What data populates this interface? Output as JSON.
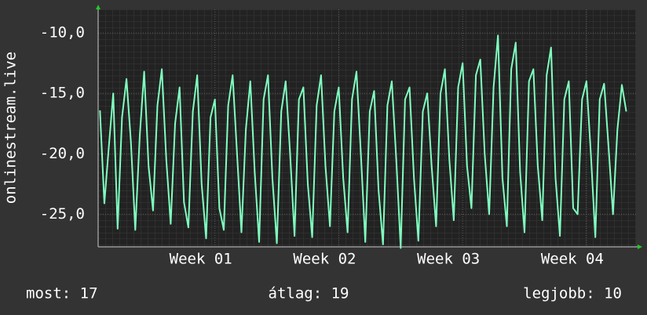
{
  "chart_data": {
    "type": "line",
    "y_label": "onlinestream.live",
    "color": "#80ffc0",
    "grid": true,
    "xlim": [
      0.4,
      30.8
    ],
    "ylim": [
      -27.7,
      -8.05
    ],
    "xticks": [
      {
        "value": 7,
        "label": "Week 01"
      },
      {
        "value": 14,
        "label": "Week 02"
      },
      {
        "value": 21,
        "label": "Week 03"
      },
      {
        "value": 28,
        "label": "Week 04"
      }
    ],
    "yticks": [
      {
        "value": -10,
        "label": "-10,0"
      },
      {
        "value": -15,
        "label": "-15,0"
      },
      {
        "value": -20,
        "label": "-20,0"
      },
      {
        "value": -25,
        "label": "-25,0"
      }
    ],
    "x": [
      0.5,
      0.75,
      1,
      1.25,
      1.5,
      1.75,
      2,
      2.25,
      2.5,
      2.75,
      3,
      3.25,
      3.5,
      3.75,
      4,
      4.25,
      4.5,
      4.75,
      5,
      5.25,
      5.5,
      5.75,
      6,
      6.25,
      6.5,
      6.75,
      7,
      7.25,
      7.5,
      7.75,
      8,
      8.25,
      8.5,
      8.75,
      9,
      9.25,
      9.5,
      9.75,
      10,
      10.25,
      10.5,
      10.75,
      11,
      11.25,
      11.5,
      11.75,
      12,
      12.25,
      12.5,
      12.75,
      13,
      13.25,
      13.5,
      13.75,
      14,
      14.25,
      14.5,
      14.75,
      15,
      15.25,
      15.5,
      15.75,
      16,
      16.25,
      16.5,
      16.75,
      17,
      17.25,
      17.5,
      17.75,
      18,
      18.25,
      18.5,
      18.75,
      19,
      19.25,
      19.5,
      19.75,
      20,
      20.25,
      20.5,
      20.75,
      21,
      21.25,
      21.5,
      21.75,
      22,
      22.25,
      22.5,
      22.75,
      23,
      23.25,
      23.5,
      23.75,
      24,
      24.25,
      24.5,
      24.75,
      25,
      25.25,
      25.5,
      25.75,
      26,
      26.25,
      26.5,
      26.75,
      27,
      27.25,
      27.5,
      27.75,
      28,
      28.25,
      28.5,
      28.75,
      29,
      29.25,
      29.5,
      29.75,
      30,
      30.25
    ],
    "values": [
      -16.4,
      -24.1,
      -19.5,
      -15.0,
      -26.2,
      -17.0,
      -13.8,
      -19.0,
      -26.3,
      -18.5,
      -13.2,
      -21.0,
      -24.7,
      -16.0,
      -13.0,
      -20.5,
      -25.8,
      -17.5,
      -14.5,
      -24.0,
      -26.1,
      -16.5,
      -13.5,
      -22.5,
      -27.0,
      -17.0,
      -15.5,
      -24.5,
      -26.3,
      -16.0,
      -13.5,
      -20.0,
      -26.5,
      -18.0,
      -14.0,
      -21.5,
      -27.3,
      -15.5,
      -13.5,
      -22.0,
      -27.4,
      -16.5,
      -14.0,
      -20.0,
      -26.8,
      -15.5,
      -14.5,
      -22.5,
      -26.9,
      -16.0,
      -13.5,
      -21.0,
      -26.0,
      -16.5,
      -14.5,
      -22.0,
      -26.5,
      -15.5,
      -13.2,
      -20.0,
      -27.3,
      -16.5,
      -14.8,
      -23.0,
      -27.5,
      -16.0,
      -14.0,
      -20.5,
      -27.8,
      -15.5,
      -14.5,
      -22.0,
      -27.2,
      -16.5,
      -15.0,
      -21.0,
      -26.0,
      -15.0,
      -13.0,
      -20.5,
      -25.5,
      -14.5,
      -12.5,
      -21.0,
      -24.5,
      -13.5,
      -12.2,
      -20.0,
      -25.0,
      -14.5,
      -10.2,
      -22.0,
      -26.0,
      -13.0,
      -10.8,
      -21.5,
      -26.5,
      -14.0,
      -13.0,
      -21.0,
      -25.5,
      -13.5,
      -11.2,
      -22.0,
      -26.8,
      -15.5,
      -14.0,
      -24.5,
      -25.0,
      -15.5,
      -14.0,
      -20.0,
      -26.9,
      -15.5,
      -14.2,
      -19.5,
      -25.0,
      -18.0,
      -14.3,
      -16.5
    ],
    "annotations": [
      "most: 17",
      "átlag: 19",
      "legjobb: 10"
    ]
  }
}
